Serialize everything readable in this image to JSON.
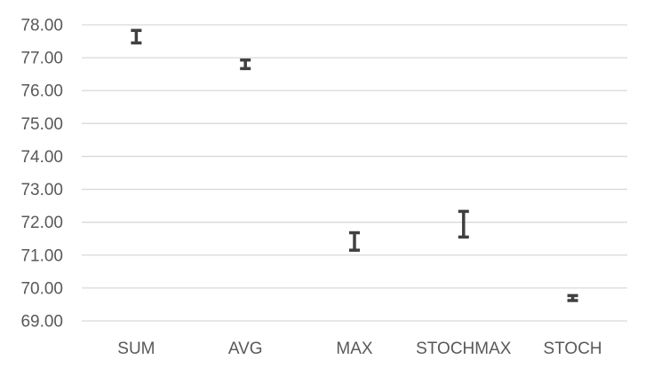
{
  "chart_data": {
    "type": "error-bar",
    "categories": [
      "SUM",
      "AVG",
      "MAX",
      "STOCHMAX",
      "STOCH"
    ],
    "series": [
      {
        "lower": [
          77.45,
          76.67,
          71.15,
          71.55,
          69.62
        ],
        "upper": [
          77.83,
          76.93,
          71.68,
          72.33,
          69.77
        ]
      }
    ],
    "ylim": [
      69.0,
      78.0
    ],
    "yticks": [
      "69.00",
      "70.00",
      "71.00",
      "72.00",
      "73.00",
      "74.00",
      "75.00",
      "76.00",
      "77.00",
      "78.00"
    ],
    "grid": true,
    "title": "",
    "xlabel": "",
    "ylabel": "",
    "colors": {
      "bar": "#404040",
      "grid": "#d9d9d9",
      "text": "#595959"
    }
  }
}
